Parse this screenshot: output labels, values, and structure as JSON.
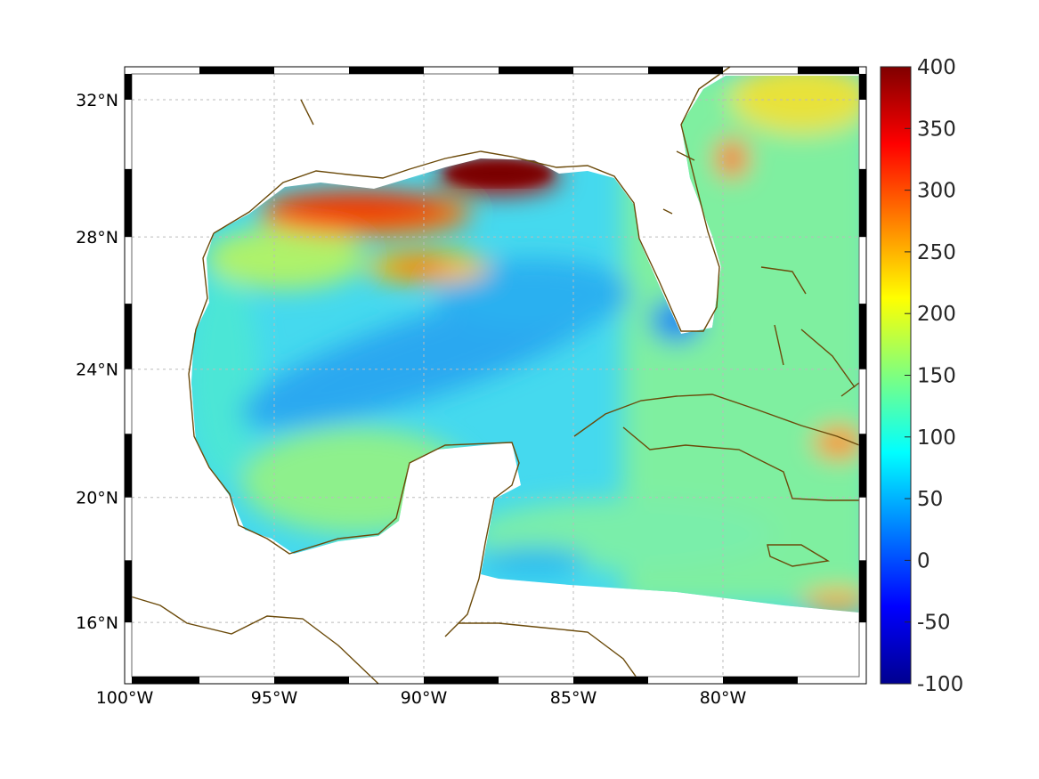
{
  "chart_data": {
    "type": "heatmap",
    "title": "",
    "projection": "mercator",
    "lon_range": [
      -100,
      -75
    ],
    "lat_range": [
      14.3,
      33
    ],
    "x_ticks": [
      {
        "value": -100,
        "label": "100°W"
      },
      {
        "value": -95,
        "label": "95°W"
      },
      {
        "value": -90,
        "label": "90°W"
      },
      {
        "value": -85,
        "label": "85°W"
      },
      {
        "value": -80,
        "label": "80°W"
      }
    ],
    "y_ticks": [
      {
        "value": 32,
        "label": "32°N"
      },
      {
        "value": 28,
        "label": "28°N"
      },
      {
        "value": 24,
        "label": "24°N"
      },
      {
        "value": 20,
        "label": "20°N"
      },
      {
        "value": 16,
        "label": "16°N"
      }
    ],
    "grid": true,
    "colormap": "jet",
    "colorbar": {
      "range": [
        -100,
        400
      ],
      "ticks": [
        {
          "value": 400,
          "label": "400"
        },
        {
          "value": 350,
          "label": "350"
        },
        {
          "value": 300,
          "label": "300"
        },
        {
          "value": 250,
          "label": "250"
        },
        {
          "value": 200,
          "label": "200"
        },
        {
          "value": 150,
          "label": "150"
        },
        {
          "value": 100,
          "label": "100"
        },
        {
          "value": 50,
          "label": "50"
        },
        {
          "value": 0,
          "label": "0"
        },
        {
          "value": -50,
          "label": "-50"
        },
        {
          "value": -100,
          "label": "-100"
        }
      ],
      "placement": "right"
    },
    "features": [
      {
        "name": "northern-shelf-high",
        "lon": -92,
        "lat": 28.8,
        "value": 330
      },
      {
        "name": "mississippi-delta-max",
        "lon": -88,
        "lat": 29.7,
        "value": 400
      },
      {
        "name": "offshore-louisiana-blob",
        "lon": -88.8,
        "lat": 27.2,
        "value": 260
      },
      {
        "name": "atlantic-blob",
        "lon": -79.7,
        "lat": 30.3,
        "value": 280
      },
      {
        "name": "bahamas-east-blob",
        "lon": -75.5,
        "lat": 21.8,
        "value": 270
      },
      {
        "name": "central-gulf-low",
        "lon": -89,
        "lat": 24.5,
        "value": 30
      }
    ],
    "coastline_color": "#6b4a0a"
  }
}
